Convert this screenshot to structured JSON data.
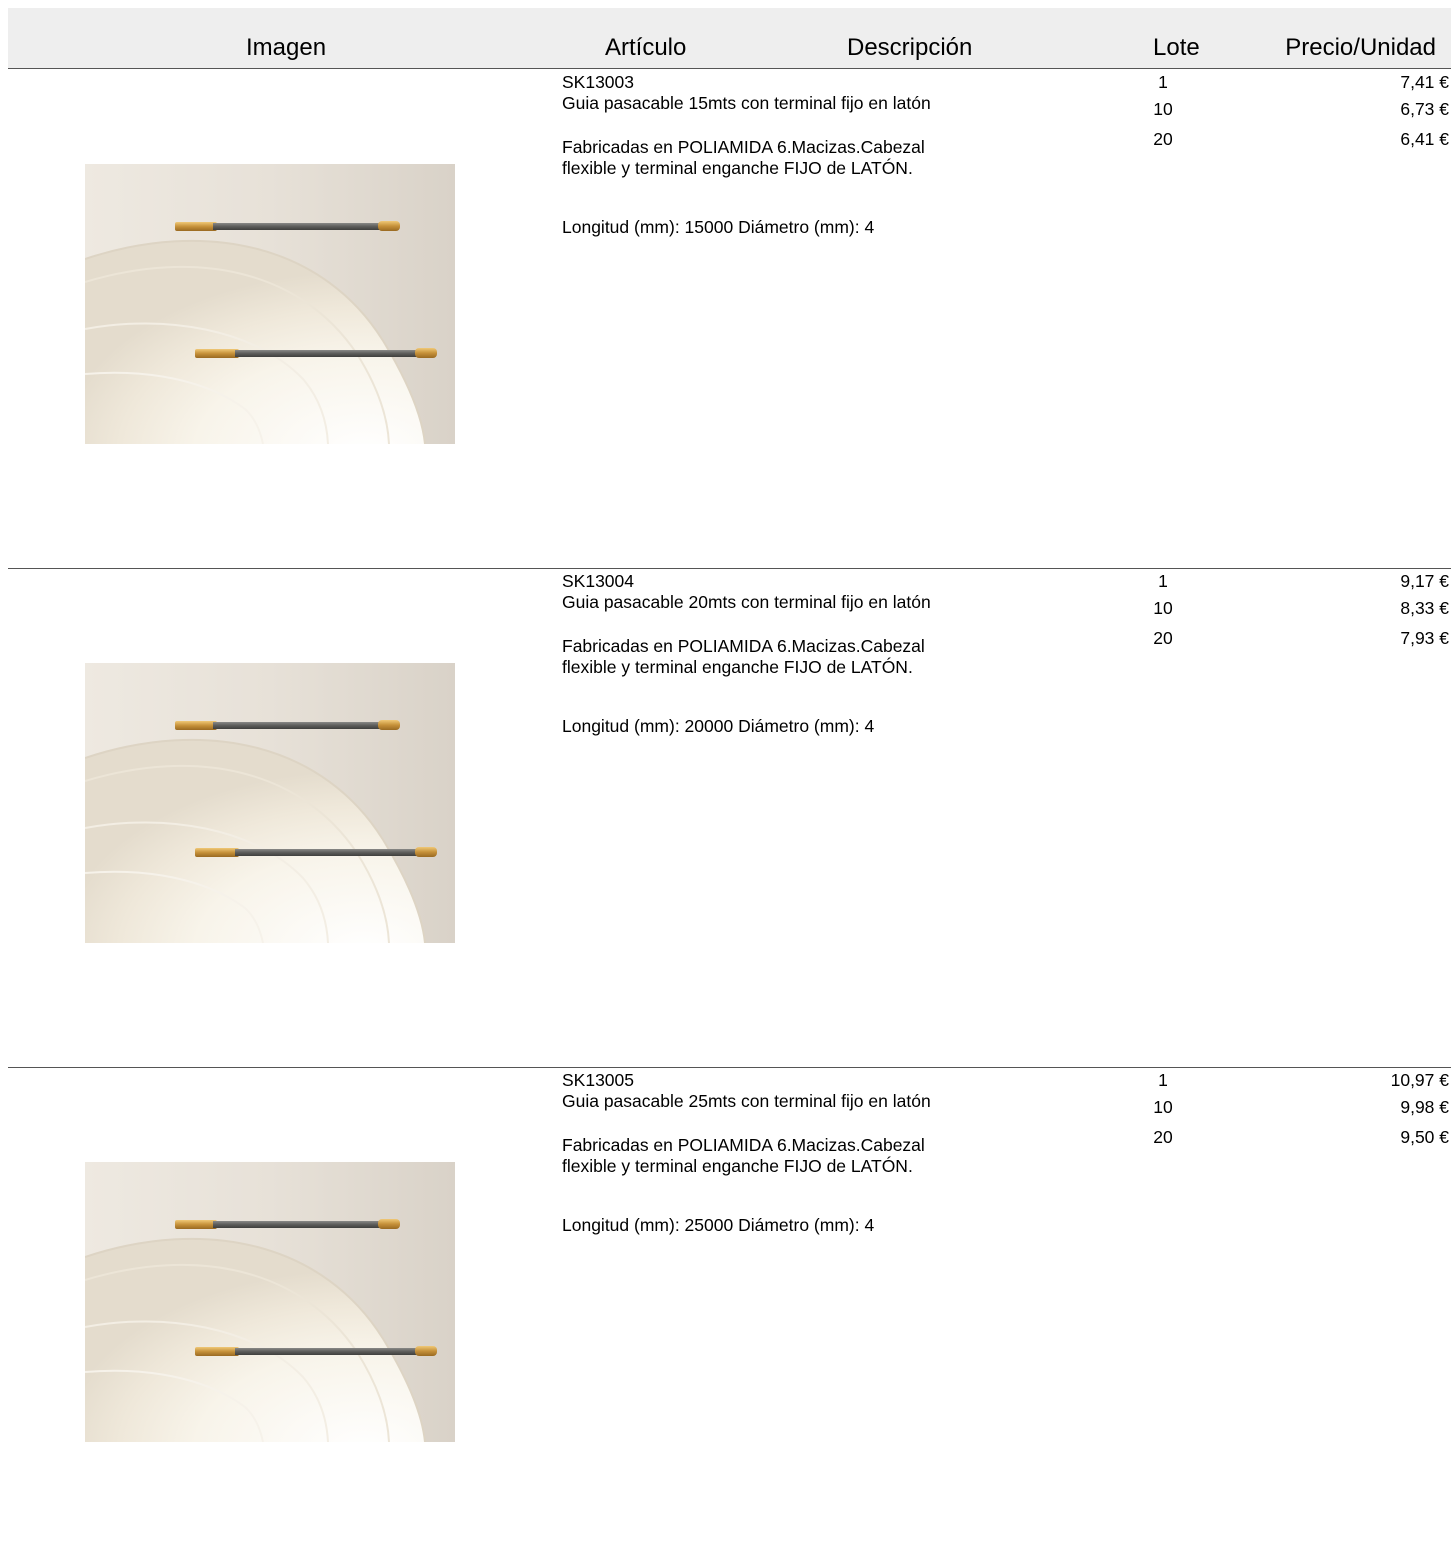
{
  "header": {
    "imagen": "Imagen",
    "articulo": "Artículo",
    "descripcion": "Descripción",
    "lote": "Lote",
    "precio": "Precio/Unidad"
  },
  "products": [
    {
      "code": "SK13003",
      "title": "Guia pasacable 15mts con terminal fijo en latón",
      "description_line1": "Fabricadas en POLIAMIDA 6.Macizas.Cabezal",
      "description_line2": "flexible y terminal enganche FIJO de LATÓN.",
      "dimensions": "Longitud (mm): 15000 Diámetro (mm): 4",
      "lots": [
        "1",
        "10",
        "20"
      ],
      "prices": [
        "7,41 €",
        "6,73 €",
        "6,41 €"
      ]
    },
    {
      "code": "SK13004",
      "title": "Guia pasacable 20mts con terminal fijo en latón",
      "description_line1": "Fabricadas en POLIAMIDA 6.Macizas.Cabezal",
      "description_line2": "flexible y terminal enganche FIJO de LATÓN.",
      "dimensions": "Longitud (mm): 20000 Diámetro (mm): 4",
      "lots": [
        "1",
        "10",
        "20"
      ],
      "prices": [
        "9,17 €",
        "8,33 €",
        "7,93 €"
      ]
    },
    {
      "code": "SK13005",
      "title": "Guia pasacable 25mts con terminal fijo en latón",
      "description_line1": "Fabricadas en POLIAMIDA 6.Macizas.Cabezal",
      "description_line2": "flexible y terminal enganche FIJO de LATÓN.",
      "dimensions": "Longitud (mm): 25000 Diámetro (mm): 4",
      "lots": [
        "1",
        "10",
        "20"
      ],
      "prices": [
        "10,97 €",
        "9,98 €",
        "9,50 €"
      ]
    }
  ]
}
